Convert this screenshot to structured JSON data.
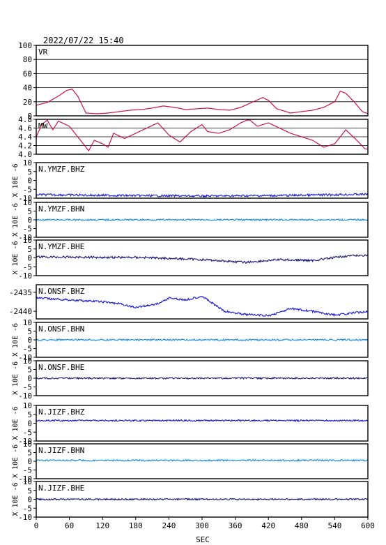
{
  "header": {
    "timestamp": "2022/07/22 15:40"
  },
  "chart_data": {
    "type": "line",
    "xlabel": "SEC",
    "x_ticks": [
      "0",
      "60",
      "120",
      "180",
      "240",
      "300",
      "360",
      "420",
      "480",
      "540",
      "600"
    ],
    "xlim": [
      0,
      600
    ],
    "panels": [
      {
        "name": "VR",
        "ylim": [
          0,
          100
        ],
        "y_ticks": [
          "100",
          "80",
          "60",
          "40",
          "20",
          "0"
        ],
        "ylabel": "",
        "color": "#cc1144",
        "grid": true,
        "points": [
          [
            0,
            15
          ],
          [
            20,
            19
          ],
          [
            40,
            28
          ],
          [
            55,
            36
          ],
          [
            65,
            38
          ],
          [
            75,
            28
          ],
          [
            90,
            4
          ],
          [
            110,
            3
          ],
          [
            130,
            4
          ],
          [
            150,
            6
          ],
          [
            170,
            8
          ],
          [
            190,
            9
          ],
          [
            210,
            11
          ],
          [
            230,
            14
          ],
          [
            250,
            12
          ],
          [
            270,
            9
          ],
          [
            290,
            10
          ],
          [
            310,
            11
          ],
          [
            330,
            9
          ],
          [
            350,
            8
          ],
          [
            370,
            12
          ],
          [
            390,
            19
          ],
          [
            410,
            26
          ],
          [
            420,
            22
          ],
          [
            435,
            10
          ],
          [
            460,
            4
          ],
          [
            480,
            6
          ],
          [
            500,
            8
          ],
          [
            520,
            12
          ],
          [
            540,
            20
          ],
          [
            550,
            35
          ],
          [
            560,
            32
          ],
          [
            575,
            20
          ],
          [
            590,
            6
          ],
          [
            600,
            3
          ]
        ]
      },
      {
        "name": "MW",
        "ylim": [
          3.9,
          4.9
        ],
        "y_ticks": [
          "4.8",
          "4.6",
          "4.4",
          "4.2",
          "4.0"
        ],
        "ylabel": "",
        "color": "#cc1144",
        "grid": true,
        "points": [
          [
            0,
            4.4
          ],
          [
            10,
            4.75
          ],
          [
            20,
            4.88
          ],
          [
            30,
            4.6
          ],
          [
            40,
            4.85
          ],
          [
            60,
            4.7
          ],
          [
            80,
            4.3
          ],
          [
            95,
            4.0
          ],
          [
            105,
            4.3
          ],
          [
            120,
            4.2
          ],
          [
            130,
            4.1
          ],
          [
            140,
            4.5
          ],
          [
            160,
            4.35
          ],
          [
            180,
            4.5
          ],
          [
            200,
            4.65
          ],
          [
            220,
            4.8
          ],
          [
            240,
            4.45
          ],
          [
            260,
            4.25
          ],
          [
            280,
            4.55
          ],
          [
            300,
            4.75
          ],
          [
            310,
            4.55
          ],
          [
            330,
            4.5
          ],
          [
            350,
            4.6
          ],
          [
            370,
            4.8
          ],
          [
            385,
            4.9
          ],
          [
            400,
            4.7
          ],
          [
            420,
            4.8
          ],
          [
            440,
            4.65
          ],
          [
            460,
            4.5
          ],
          [
            480,
            4.4
          ],
          [
            500,
            4.3
          ],
          [
            520,
            4.1
          ],
          [
            540,
            4.2
          ],
          [
            560,
            4.6
          ],
          [
            580,
            4.3
          ],
          [
            595,
            4.05
          ]
        ]
      },
      {
        "name": "N.YMZF.BHZ",
        "ylim": [
          -10,
          10
        ],
        "y_ticks": [
          "10",
          "5",
          "0",
          "-5",
          "-10"
        ],
        "ylabel": "X 10E -6",
        "color": "#1111dd",
        "grid": false,
        "points": [
          [
            0,
            -8
          ],
          [
            150,
            -8.5
          ],
          [
            300,
            -8.8
          ],
          [
            450,
            -8.5
          ],
          [
            550,
            -8
          ],
          [
            600,
            -7.8
          ]
        ]
      },
      {
        "name": "N.YMZF.BHN",
        "ylim": [
          -10,
          10
        ],
        "y_ticks": [
          "10",
          "5",
          "0",
          "-5",
          "-10"
        ],
        "ylabel": "X 10E -6",
        "color": "#1188dd",
        "grid": false,
        "points": [
          [
            0,
            0
          ],
          [
            600,
            0
          ]
        ]
      },
      {
        "name": "N.YMZF.BHE",
        "ylim": [
          -10,
          10
        ],
        "y_ticks": [
          "10",
          "5",
          "0",
          "-5",
          "-10"
        ],
        "ylabel": "X 10E -6",
        "color": "#111177",
        "grid": false,
        "points": [
          [
            0,
            0.5
          ],
          [
            200,
            0.2
          ],
          [
            300,
            -1
          ],
          [
            380,
            -2.5
          ],
          [
            440,
            -1
          ],
          [
            500,
            -1.5
          ],
          [
            560,
            1
          ],
          [
            600,
            1.5
          ]
        ]
      },
      {
        "name": "N.ONSF.BHZ",
        "ylim": [
          -2442,
          -2433
        ],
        "y_ticks": [
          "-2435",
          "-2440"
        ],
        "ylabel": "",
        "color": "#1111dd",
        "grid": false,
        "points": [
          [
            0,
            -2436.5
          ],
          [
            60,
            -2437
          ],
          [
            120,
            -2437.5
          ],
          [
            150,
            -2438
          ],
          [
            180,
            -2439
          ],
          [
            220,
            -2438
          ],
          [
            240,
            -2436.5
          ],
          [
            270,
            -2437
          ],
          [
            300,
            -2436
          ],
          [
            340,
            -2440
          ],
          [
            380,
            -2440.8
          ],
          [
            420,
            -2441.2
          ],
          [
            460,
            -2439.3
          ],
          [
            500,
            -2440
          ],
          [
            540,
            -2441
          ],
          [
            600,
            -2440
          ]
        ]
      },
      {
        "name": "N.ONSF.BHN",
        "ylim": [
          -10,
          10
        ],
        "y_ticks": [
          "10",
          "5",
          "0",
          "-5",
          "-10"
        ],
        "ylabel": "X 10E -6",
        "color": "#1188dd",
        "grid": false,
        "points": [
          [
            0,
            0
          ],
          [
            600,
            0
          ]
        ]
      },
      {
        "name": "N.ONSF.BHE",
        "ylim": [
          -10,
          10
        ],
        "y_ticks": [
          "10",
          "5",
          "0",
          "-5",
          "-10"
        ],
        "ylabel": "X 10E -6",
        "color": "#111177",
        "grid": false,
        "points": [
          [
            0,
            0
          ],
          [
            300,
            0
          ],
          [
            600,
            0
          ]
        ]
      },
      {
        "name": "N.JIZF.BHZ",
        "ylim": [
          -10,
          10
        ],
        "y_ticks": [
          "10",
          "5",
          "0",
          "-5",
          "-10"
        ],
        "ylabel": "X 10E -6",
        "color": "#1111dd",
        "grid": false,
        "points": [
          [
            0,
            1.5
          ],
          [
            600,
            1.5
          ]
        ]
      },
      {
        "name": "N.JIZF.BHN",
        "ylim": [
          -10,
          10
        ],
        "y_ticks": [
          "10",
          "5",
          "0",
          "-5",
          "-10"
        ],
        "ylabel": "X 10E -6",
        "color": "#1188dd",
        "grid": false,
        "points": [
          [
            0,
            0.5
          ],
          [
            600,
            0.5
          ]
        ]
      },
      {
        "name": "N.JIZF.BHE",
        "ylim": [
          -10,
          10
        ],
        "y_ticks": [
          "10",
          "5",
          "0",
          "-5",
          "-10"
        ],
        "ylabel": "X 10E -6",
        "color": "#111177",
        "grid": false,
        "points": [
          [
            0,
            0
          ],
          [
            300,
            0
          ],
          [
            600,
            0
          ]
        ]
      }
    ]
  }
}
